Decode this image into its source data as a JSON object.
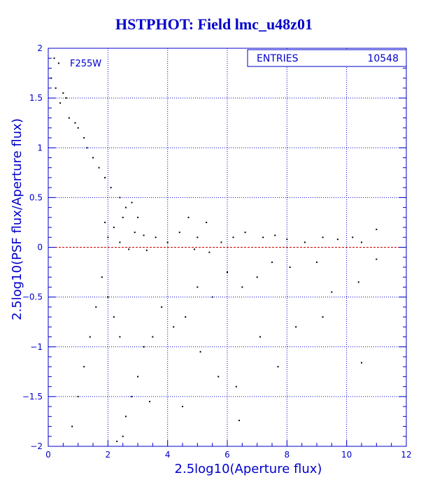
{
  "chart_data": {
    "type": "scatter",
    "title": "HSTPHOT: Field lmc_u48z01",
    "xlabel": "2.5log10(Aperture flux)",
    "ylabel": "2.5log10(PSF flux/Aperture flux)",
    "xlim": [
      0,
      12
    ],
    "ylim": [
      -2,
      2
    ],
    "xticks": [
      "0",
      "2",
      "4",
      "6",
      "8",
      "10",
      "12"
    ],
    "yticks": [
      "-2",
      "-1.5",
      "-1",
      "-0.5",
      "0",
      "0.5",
      "1",
      "1.5",
      "2"
    ],
    "grid": true,
    "filter_label": "F255W",
    "stats": {
      "label": "ENTRIES",
      "value": "10548"
    },
    "reference_line": {
      "y": 0,
      "color": "#cc0000"
    },
    "colors": {
      "axis": "#0000cc",
      "points": "#000000"
    },
    "points_sample": [
      [
        0.2,
        1.9
      ],
      [
        0.35,
        1.85
      ],
      [
        0.1,
        1.7
      ],
      [
        0.25,
        1.6
      ],
      [
        0.5,
        1.55
      ],
      [
        0.6,
        1.5
      ],
      [
        0.4,
        1.45
      ],
      [
        0.7,
        1.3
      ],
      [
        0.9,
        1.25
      ],
      [
        1.0,
        1.2
      ],
      [
        1.2,
        1.1
      ],
      [
        1.3,
        1.0
      ],
      [
        1.5,
        0.9
      ],
      [
        1.7,
        0.8
      ],
      [
        1.9,
        0.7
      ],
      [
        2.1,
        0.6
      ],
      [
        2.4,
        0.5
      ],
      [
        2.6,
        0.4
      ],
      [
        2.8,
        0.45
      ],
      [
        3.0,
        0.3
      ],
      [
        2.5,
        0.3
      ],
      [
        2.2,
        0.2
      ],
      [
        2.0,
        0.1
      ],
      [
        2.4,
        0.05
      ],
      [
        3.2,
        0.12
      ],
      [
        3.6,
        0.1
      ],
      [
        4.0,
        0.05
      ],
      [
        4.4,
        0.15
      ],
      [
        4.7,
        0.3
      ],
      [
        5.0,
        0.1
      ],
      [
        5.3,
        0.25
      ],
      [
        5.8,
        0.05
      ],
      [
        6.2,
        0.1
      ],
      [
        6.6,
        0.15
      ],
      [
        7.2,
        0.1
      ],
      [
        7.6,
        0.12
      ],
      [
        8.0,
        0.08
      ],
      [
        8.6,
        0.05
      ],
      [
        9.2,
        0.1
      ],
      [
        9.7,
        0.08
      ],
      [
        10.2,
        0.1
      ],
      [
        10.5,
        0.05
      ],
      [
        11.0,
        0.18
      ],
      [
        9.0,
        -0.15
      ],
      [
        8.1,
        -0.2
      ],
      [
        7.5,
        -0.15
      ],
      [
        7.0,
        -0.3
      ],
      [
        6.5,
        -0.4
      ],
      [
        6.0,
        -0.25
      ],
      [
        5.5,
        -0.5
      ],
      [
        5.0,
        -0.4
      ],
      [
        4.6,
        -0.7
      ],
      [
        4.2,
        -0.8
      ],
      [
        3.8,
        -0.6
      ],
      [
        3.5,
        -0.9
      ],
      [
        3.2,
        -1.0
      ],
      [
        3.0,
        -1.3
      ],
      [
        2.8,
        -1.5
      ],
      [
        2.6,
        -1.7
      ],
      [
        2.4,
        -0.9
      ],
      [
        2.2,
        -0.7
      ],
      [
        2.0,
        -0.5
      ],
      [
        1.8,
        -0.3
      ],
      [
        1.6,
        -0.6
      ],
      [
        1.4,
        -0.9
      ],
      [
        1.2,
        -1.2
      ],
      [
        1.0,
        -1.5
      ],
      [
        0.8,
        -1.8
      ],
      [
        2.3,
        -1.95
      ],
      [
        2.5,
        -1.9
      ],
      [
        3.4,
        -1.55
      ],
      [
        4.5,
        -1.6
      ],
      [
        5.1,
        -1.05
      ],
      [
        5.7,
        -1.3
      ],
      [
        6.3,
        -1.4
      ],
      [
        7.1,
        -0.9
      ],
      [
        7.7,
        -1.2
      ],
      [
        8.3,
        -0.8
      ],
      [
        9.2,
        -0.7
      ],
      [
        9.5,
        -0.45
      ],
      [
        10.4,
        -0.35
      ],
      [
        10.5,
        -1.16
      ],
      [
        11.0,
        -0.12
      ],
      [
        6.4,
        -1.74
      ],
      [
        5.4,
        -0.05
      ],
      [
        4.9,
        -0.02
      ],
      [
        2.7,
        -0.02
      ],
      [
        3.3,
        -0.03
      ],
      [
        1.9,
        0.25
      ],
      [
        2.9,
        0.15
      ]
    ]
  }
}
